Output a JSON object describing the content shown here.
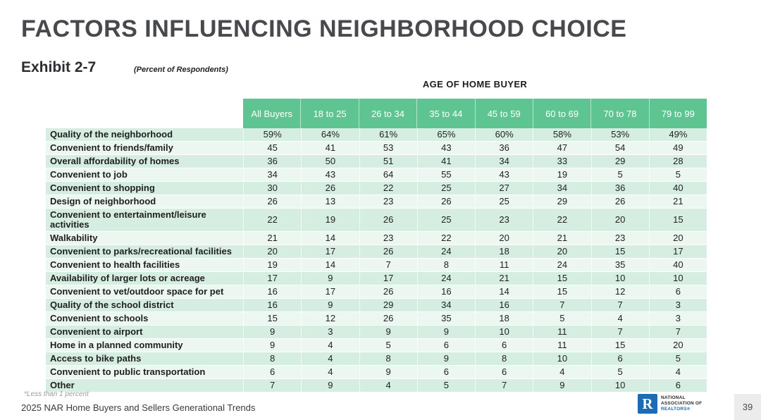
{
  "page": {
    "title": "FACTORS INFLUENCING NEIGHBORHOOD CHOICE",
    "exhibit": "Exhibit 2-7",
    "subtitle": "(Percent of Respondents)",
    "footnote": "*Less than 1 percent",
    "source": "2025 NAR Home Buyers and Sellers Generational Trends",
    "page_number": "39",
    "logo": {
      "letter": "R",
      "line1": "NATIONAL",
      "line2": "ASSOCIATION OF",
      "line3": "REALTORS®"
    }
  },
  "colors": {
    "header_green": "#5EC492",
    "row_odd": "#D6EEE1",
    "row_even": "#ECF7F1",
    "nar_blue": "#1B6BB5"
  },
  "table": {
    "group_header": "AGE OF HOME BUYER",
    "columns": [
      "All Buyers",
      "18 to 25",
      "26 to 34",
      "35 to 44",
      "45 to 59",
      "60 to 69",
      "70 to 78",
      "79 to 99"
    ],
    "rows": [
      {
        "label": "Quality of the neighborhood",
        "values": [
          "59%",
          "64%",
          "61%",
          "65%",
          "60%",
          "58%",
          "53%",
          "49%"
        ]
      },
      {
        "label": "Convenient to friends/family",
        "values": [
          "45",
          "41",
          "53",
          "43",
          "36",
          "47",
          "54",
          "49"
        ]
      },
      {
        "label": "Overall affordability of homes",
        "values": [
          "36",
          "50",
          "51",
          "41",
          "34",
          "33",
          "29",
          "28"
        ]
      },
      {
        "label": "Convenient to job",
        "values": [
          "34",
          "43",
          "64",
          "55",
          "43",
          "19",
          "5",
          "5"
        ]
      },
      {
        "label": "Convenient to shopping",
        "values": [
          "30",
          "26",
          "22",
          "25",
          "27",
          "34",
          "36",
          "40"
        ]
      },
      {
        "label": "Design of neighborhood",
        "values": [
          "26",
          "13",
          "23",
          "26",
          "25",
          "29",
          "26",
          "21"
        ]
      },
      {
        "label": "Convenient to entertainment/leisure activities",
        "values": [
          "22",
          "19",
          "26",
          "25",
          "23",
          "22",
          "20",
          "15"
        ]
      },
      {
        "label": "Walkability",
        "values": [
          "21",
          "14",
          "23",
          "22",
          "20",
          "21",
          "23",
          "20"
        ]
      },
      {
        "label": "Convenient to parks/recreational facilities",
        "values": [
          "20",
          "17",
          "26",
          "24",
          "18",
          "20",
          "15",
          "17"
        ]
      },
      {
        "label": "Convenient to health facilities",
        "values": [
          "19",
          "14",
          "7",
          "8",
          "11",
          "24",
          "35",
          "40"
        ]
      },
      {
        "label": "Availability of larger lots or acreage",
        "values": [
          "17",
          "9",
          "17",
          "24",
          "21",
          "15",
          "10",
          "10"
        ]
      },
      {
        "label": "Convenient to vet/outdoor space for pet",
        "values": [
          "16",
          "17",
          "26",
          "16",
          "14",
          "15",
          "12",
          "6"
        ]
      },
      {
        "label": "Quality of the school district",
        "values": [
          "16",
          "9",
          "29",
          "34",
          "16",
          "7",
          "7",
          "3"
        ]
      },
      {
        "label": "Convenient to schools",
        "values": [
          "15",
          "12",
          "26",
          "35",
          "18",
          "5",
          "4",
          "3"
        ]
      },
      {
        "label": "Convenient to airport",
        "values": [
          "9",
          "3",
          "9",
          "9",
          "10",
          "11",
          "7",
          "7"
        ]
      },
      {
        "label": "Home in a planned community",
        "values": [
          "9",
          "4",
          "5",
          "6",
          "6",
          "11",
          "15",
          "20"
        ]
      },
      {
        "label": "Access to bike paths",
        "values": [
          "8",
          "4",
          "8",
          "9",
          "8",
          "10",
          "6",
          "5"
        ]
      },
      {
        "label": "Convenient to public transportation",
        "values": [
          "6",
          "4",
          "9",
          "6",
          "6",
          "4",
          "5",
          "4"
        ]
      },
      {
        "label": "Other",
        "values": [
          "7",
          "9",
          "4",
          "5",
          "7",
          "9",
          "10",
          "6"
        ]
      }
    ]
  },
  "chart_data": {
    "type": "table",
    "title": "FACTORS INFLUENCING NEIGHBORHOOD CHOICE",
    "subtitle": "Percent of Respondents",
    "exhibit": "Exhibit 2-7",
    "column_group": "AGE OF HOME BUYER",
    "columns": [
      "All Buyers",
      "18 to 25",
      "26 to 34",
      "35 to 44",
      "45 to 59",
      "60 to 69",
      "70 to 78",
      "79 to 99"
    ],
    "rows": [
      {
        "factor": "Quality of the neighborhood",
        "values": [
          59,
          64,
          61,
          65,
          60,
          58,
          53,
          49
        ]
      },
      {
        "factor": "Convenient to friends/family",
        "values": [
          45,
          41,
          53,
          43,
          36,
          47,
          54,
          49
        ]
      },
      {
        "factor": "Overall affordability of homes",
        "values": [
          36,
          50,
          51,
          41,
          34,
          33,
          29,
          28
        ]
      },
      {
        "factor": "Convenient to job",
        "values": [
          34,
          43,
          64,
          55,
          43,
          19,
          5,
          5
        ]
      },
      {
        "factor": "Convenient to shopping",
        "values": [
          30,
          26,
          22,
          25,
          27,
          34,
          36,
          40
        ]
      },
      {
        "factor": "Design of neighborhood",
        "values": [
          26,
          13,
          23,
          26,
          25,
          29,
          26,
          21
        ]
      },
      {
        "factor": "Convenient to entertainment/leisure activities",
        "values": [
          22,
          19,
          26,
          25,
          23,
          22,
          20,
          15
        ]
      },
      {
        "factor": "Walkability",
        "values": [
          21,
          14,
          23,
          22,
          20,
          21,
          23,
          20
        ]
      },
      {
        "factor": "Convenient to parks/recreational facilities",
        "values": [
          20,
          17,
          26,
          24,
          18,
          20,
          15,
          17
        ]
      },
      {
        "factor": "Convenient to health facilities",
        "values": [
          19,
          14,
          7,
          8,
          11,
          24,
          35,
          40
        ]
      },
      {
        "factor": "Availability of larger lots or acreage",
        "values": [
          17,
          9,
          17,
          24,
          21,
          15,
          10,
          10
        ]
      },
      {
        "factor": "Convenient to vet/outdoor space for pet",
        "values": [
          16,
          17,
          26,
          16,
          14,
          15,
          12,
          6
        ]
      },
      {
        "factor": "Quality of the school district",
        "values": [
          16,
          9,
          29,
          34,
          16,
          7,
          7,
          3
        ]
      },
      {
        "factor": "Convenient to schools",
        "values": [
          15,
          12,
          26,
          35,
          18,
          5,
          4,
          3
        ]
      },
      {
        "factor": "Convenient to airport",
        "values": [
          9,
          3,
          9,
          9,
          10,
          11,
          7,
          7
        ]
      },
      {
        "factor": "Home in a planned community",
        "values": [
          9,
          4,
          5,
          6,
          6,
          11,
          15,
          20
        ]
      },
      {
        "factor": "Access to bike paths",
        "values": [
          8,
          4,
          8,
          9,
          8,
          10,
          6,
          5
        ]
      },
      {
        "factor": "Convenient to public transportation",
        "values": [
          6,
          4,
          9,
          6,
          6,
          4,
          5,
          4
        ]
      },
      {
        "factor": "Other",
        "values": [
          7,
          9,
          4,
          5,
          7,
          9,
          10,
          6
        ]
      }
    ],
    "units": "percent",
    "footnote": "*Less than 1 percent",
    "source": "2025 NAR Home Buyers and Sellers Generational Trends"
  }
}
